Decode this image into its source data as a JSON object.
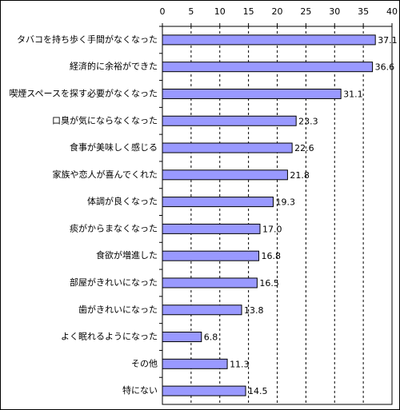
{
  "chart_data": {
    "type": "bar",
    "orientation": "horizontal",
    "categories": [
      "タバコを持ち歩く手間がなくなった",
      "経済的に余裕ができた",
      "喫煙スペースを探す必要がなくなった",
      "口臭が気にならなくなった",
      "食事が美味しく感じる",
      "家族や恋人が喜んでくれた",
      "体調が良くなった",
      "痰がからまなくなった",
      "食欲が増進した",
      "部屋がきれいになった",
      "歯がきれいになった",
      "よく眠れるようになった",
      "その他",
      "特にない"
    ],
    "values": [
      37.1,
      36.6,
      31.1,
      23.3,
      22.6,
      21.8,
      19.3,
      17.0,
      16.8,
      16.5,
      13.8,
      6.8,
      11.3,
      14.5
    ],
    "value_labels": [
      "37.1",
      "36.6",
      "31.1",
      "23.3",
      "22.6",
      "21.8",
      "19.3",
      "17.0",
      "16.8",
      "16.5",
      "13.8",
      "6.8",
      "11.3",
      "14.5"
    ],
    "color": "#9999ff",
    "xlim": [
      0,
      40
    ],
    "xticks": [
      0,
      5,
      10,
      15,
      20,
      25,
      30,
      35,
      40
    ],
    "grid": true
  }
}
